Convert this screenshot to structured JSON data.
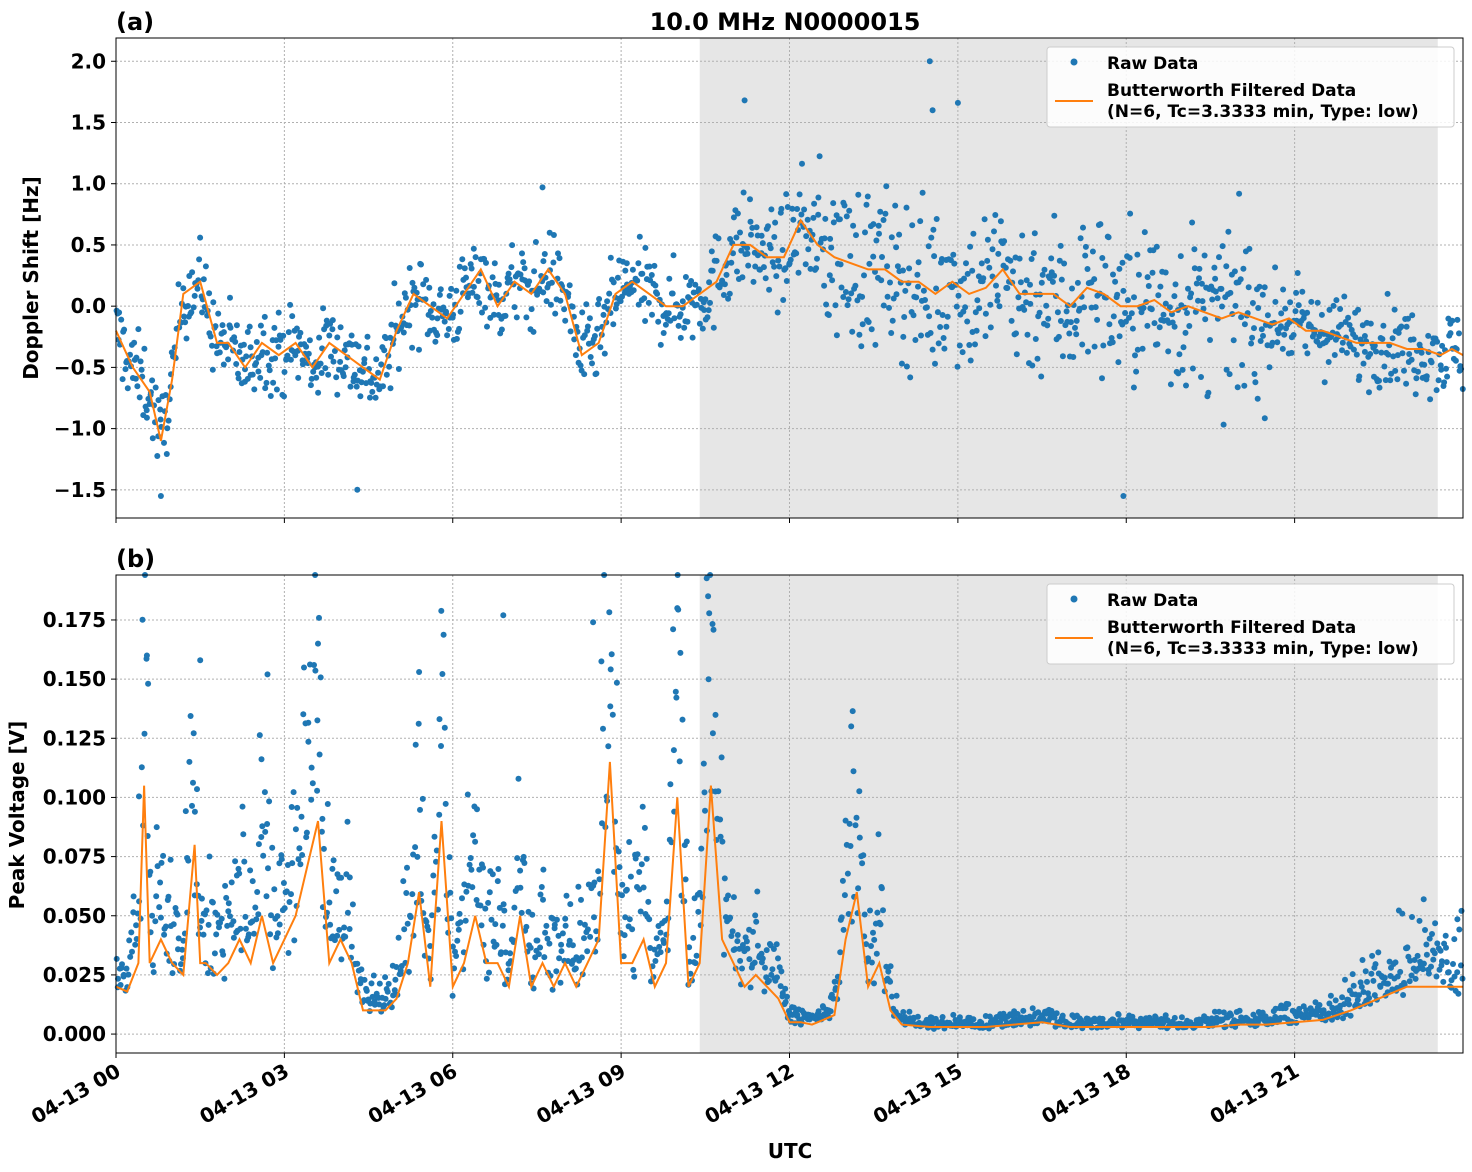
{
  "figure": {
    "title": "10.0 MHz N0000015",
    "xlabel": "UTC",
    "x_tick_labels": [
      "04-13 00",
      "04-13 03",
      "04-13 06",
      "04-13 09",
      "04-13 12",
      "04-13 15",
      "04-13 18",
      "04-13 21"
    ]
  },
  "colors": {
    "raw": "#1f77b4",
    "filtered": "#ff7f0e",
    "shade": "#e6e6e6",
    "grid": "#b0b0b0"
  },
  "chart_data": [
    {
      "type": "scatter",
      "panel_label": "(a)",
      "ylabel": "Doppler Shift [Hz]",
      "x_unit": "hours UTC on 04-13",
      "xlim": [
        0,
        24
      ],
      "ylim": [
        -1.73,
        2.19
      ],
      "y_ticks": [
        2.0,
        1.5,
        1.0,
        0.5,
        0.0,
        -0.5,
        -1.0,
        -1.5
      ],
      "y_tick_labels": [
        "2.0",
        "1.5",
        "1.0",
        "0.5",
        "0.0",
        "−0.5",
        "−1.0",
        "−1.5"
      ],
      "shaded_x_range": [
        10.4,
        23.55
      ],
      "grid": true,
      "legend_position": "top-right",
      "legend": {
        "raw_label": "Raw Data",
        "filtered_label_line1": "Butterworth Filtered Data",
        "filtered_label_line2": "(N=6, Tc=3.3333 min, Type: low)"
      },
      "series": [
        {
          "name": "Butterworth Filtered Data",
          "x": [
            0,
            0.3,
            0.6,
            0.8,
            1.0,
            1.2,
            1.5,
            1.8,
            2.0,
            2.3,
            2.6,
            2.9,
            3.2,
            3.5,
            3.8,
            4.1,
            4.4,
            4.7,
            5.0,
            5.3,
            5.6,
            5.9,
            6.2,
            6.5,
            6.8,
            7.1,
            7.4,
            7.7,
            8.0,
            8.3,
            8.6,
            8.9,
            9.2,
            9.5,
            9.8,
            10.1,
            10.4,
            10.7,
            11.0,
            11.3,
            11.6,
            11.9,
            12.2,
            12.5,
            12.8,
            13.1,
            13.4,
            13.7,
            14.0,
            14.3,
            14.6,
            14.9,
            15.2,
            15.5,
            15.8,
            16.1,
            16.4,
            16.7,
            17.0,
            17.3,
            17.6,
            17.9,
            18.2,
            18.5,
            18.8,
            19.1,
            19.4,
            19.7,
            20.0,
            20.3,
            20.6,
            20.9,
            21.2,
            21.5,
            21.8,
            22.1,
            22.4,
            22.7,
            23.0,
            23.3,
            23.6,
            23.8,
            24.0
          ],
          "y": [
            -0.2,
            -0.5,
            -0.7,
            -1.1,
            -0.6,
            0.1,
            0.2,
            -0.3,
            -0.3,
            -0.5,
            -0.3,
            -0.4,
            -0.3,
            -0.5,
            -0.3,
            -0.4,
            -0.5,
            -0.6,
            -0.2,
            0.1,
            0.0,
            -0.1,
            0.1,
            0.3,
            0.0,
            0.2,
            0.1,
            0.3,
            0.1,
            -0.4,
            -0.3,
            0.1,
            0.2,
            0.1,
            0.0,
            0.0,
            0.1,
            0.2,
            0.5,
            0.5,
            0.4,
            0.4,
            0.7,
            0.5,
            0.4,
            0.35,
            0.3,
            0.3,
            0.2,
            0.2,
            0.1,
            0.2,
            0.1,
            0.15,
            0.3,
            0.1,
            0.1,
            0.1,
            0.0,
            0.15,
            0.1,
            0.0,
            0.0,
            0.05,
            -0.05,
            0.0,
            -0.05,
            -0.1,
            -0.05,
            -0.1,
            -0.15,
            -0.1,
            -0.2,
            -0.2,
            -0.25,
            -0.3,
            -0.3,
            -0.3,
            -0.35,
            -0.35,
            -0.4,
            -0.35,
            -0.4
          ]
        },
        {
          "name": "Raw Data",
          "scatter_spread_note": "raw points scattered around the filtered curve",
          "spread_segments": [
            {
              "x": [
                0,
                10.4
              ],
              "y_spread": 0.3
            },
            {
              "x": [
                10.4,
                12.5
              ],
              "y_spread": 0.35
            },
            {
              "x": [
                12.5,
                20.5
              ],
              "y_spread": 0.6
            },
            {
              "x": [
                20.5,
                24
              ],
              "y_spread": 0.3
            }
          ],
          "notable_points": [
            {
              "x": 14.5,
              "y": 2.0
            },
            {
              "x": 11.2,
              "y": 1.68
            },
            {
              "x": 15.0,
              "y": 1.66
            },
            {
              "x": 14.55,
              "y": 1.6
            },
            {
              "x": 17.95,
              "y": -1.55
            },
            {
              "x": 0.8,
              "y": -1.55
            },
            {
              "x": 4.3,
              "y": -1.5
            },
            {
              "x": 7.6,
              "y": 0.97
            }
          ]
        }
      ]
    },
    {
      "type": "scatter",
      "panel_label": "(b)",
      "ylabel": "Peak Voltage [V]",
      "x_unit": "hours UTC on 04-13",
      "xlim": [
        0,
        24
      ],
      "ylim": [
        -0.008,
        0.194
      ],
      "y_ticks": [
        0.175,
        0.15,
        0.125,
        0.1,
        0.075,
        0.05,
        0.025,
        0.0
      ],
      "y_tick_labels": [
        "0.175",
        "0.150",
        "0.125",
        "0.100",
        "0.075",
        "0.050",
        "0.025",
        "0.000"
      ],
      "shaded_x_range": [
        10.4,
        23.55
      ],
      "grid": true,
      "legend_position": "top-right",
      "legend": {
        "raw_label": "Raw Data",
        "filtered_label_line1": "Butterworth Filtered Data",
        "filtered_label_line2": "(N=6, Tc=3.3333 min, Type: low)"
      },
      "series": [
        {
          "name": "Butterworth Filtered Data",
          "x": [
            0,
            0.2,
            0.4,
            0.5,
            0.6,
            0.8,
            1.0,
            1.2,
            1.4,
            1.5,
            1.6,
            1.8,
            2.0,
            2.2,
            2.4,
            2.6,
            2.8,
            3.0,
            3.2,
            3.4,
            3.6,
            3.8,
            4.0,
            4.2,
            4.4,
            4.6,
            4.8,
            5.0,
            5.2,
            5.4,
            5.6,
            5.8,
            6.0,
            6.2,
            6.4,
            6.6,
            6.8,
            7.0,
            7.2,
            7.4,
            7.6,
            7.8,
            8.0,
            8.2,
            8.4,
            8.6,
            8.8,
            9.0,
            9.2,
            9.4,
            9.6,
            9.8,
            10.0,
            10.2,
            10.4,
            10.6,
            10.8,
            11.0,
            11.2,
            11.4,
            11.6,
            11.8,
            12.0,
            12.2,
            12.4,
            12.6,
            12.8,
            13.0,
            13.2,
            13.4,
            13.6,
            13.8,
            14.0,
            14.5,
            15.0,
            15.5,
            16.0,
            16.5,
            17.0,
            17.5,
            18.0,
            18.5,
            19.0,
            19.5,
            20.0,
            20.5,
            21.0,
            21.5,
            22.0,
            22.5,
            23.0,
            23.5,
            24.0
          ],
          "y": [
            0.02,
            0.018,
            0.03,
            0.105,
            0.03,
            0.04,
            0.03,
            0.025,
            0.08,
            0.03,
            0.03,
            0.025,
            0.03,
            0.04,
            0.03,
            0.05,
            0.03,
            0.04,
            0.05,
            0.07,
            0.09,
            0.03,
            0.04,
            0.03,
            0.01,
            0.01,
            0.01,
            0.015,
            0.03,
            0.06,
            0.02,
            0.09,
            0.02,
            0.03,
            0.05,
            0.03,
            0.03,
            0.02,
            0.05,
            0.02,
            0.03,
            0.02,
            0.03,
            0.02,
            0.03,
            0.04,
            0.115,
            0.03,
            0.03,
            0.04,
            0.02,
            0.03,
            0.1,
            0.02,
            0.03,
            0.105,
            0.04,
            0.03,
            0.02,
            0.025,
            0.02,
            0.015,
            0.005,
            0.005,
            0.004,
            0.006,
            0.008,
            0.04,
            0.06,
            0.02,
            0.03,
            0.01,
            0.004,
            0.003,
            0.003,
            0.003,
            0.004,
            0.005,
            0.003,
            0.003,
            0.003,
            0.003,
            0.003,
            0.003,
            0.004,
            0.004,
            0.005,
            0.006,
            0.01,
            0.015,
            0.02,
            0.02,
            0.02
          ]
        },
        {
          "name": "Raw Data",
          "notable_points": [
            {
              "x": 10.55,
              "y": 0.185
            },
            {
              "x": 10.0,
              "y": 0.18
            },
            {
              "x": 6.9,
              "y": 0.177
            },
            {
              "x": 8.5,
              "y": 0.174
            },
            {
              "x": 3.6,
              "y": 0.165
            },
            {
              "x": 0.55,
              "y": 0.16
            },
            {
              "x": 1.5,
              "y": 0.158
            },
            {
              "x": 5.4,
              "y": 0.153
            },
            {
              "x": 2.7,
              "y": 0.152
            },
            {
              "x": 13.1,
              "y": 0.13
            },
            {
              "x": 23.3,
              "y": 0.057
            }
          ]
        }
      ]
    }
  ]
}
